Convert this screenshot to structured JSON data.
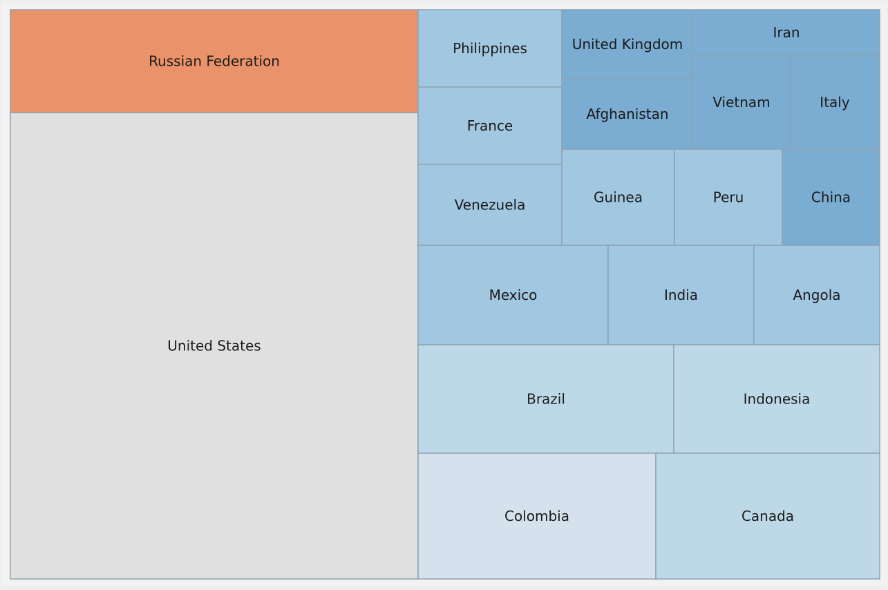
{
  "chart_data": {
    "type": "treemap",
    "title": "",
    "items": [
      {
        "label": "United States",
        "color": "#e0e0e0"
      },
      {
        "label": "Russian Federation",
        "color": "#ea936a"
      },
      {
        "label": "Philippines",
        "color": "#a2c7e0"
      },
      {
        "label": "France",
        "color": "#a2c7e0"
      },
      {
        "label": "Venezuela",
        "color": "#a2c7e0"
      },
      {
        "label": "United Kingdom",
        "color": "#7aadd1"
      },
      {
        "label": "Afghanistan",
        "color": "#7aadd1"
      },
      {
        "label": "Iran",
        "color": "#7aadd1"
      },
      {
        "label": "Vietnam",
        "color": "#7aadd1"
      },
      {
        "label": "Italy",
        "color": "#7aadd1"
      },
      {
        "label": "Guinea",
        "color": "#a2c7e0"
      },
      {
        "label": "Peru",
        "color": "#a2c7e0"
      },
      {
        "label": "China",
        "color": "#7aadd1"
      },
      {
        "label": "Mexico",
        "color": "#a2c7e0"
      },
      {
        "label": "India",
        "color": "#a2c7e0"
      },
      {
        "label": "Angola",
        "color": "#a2c7e0"
      },
      {
        "label": "Brazil",
        "color": "#bdd9e7"
      },
      {
        "label": "Indonesia",
        "color": "#bdd9e7"
      },
      {
        "label": "Colombia",
        "color": "#d5e1ec"
      },
      {
        "label": "Canada",
        "color": "#bdd9e7"
      }
    ]
  }
}
